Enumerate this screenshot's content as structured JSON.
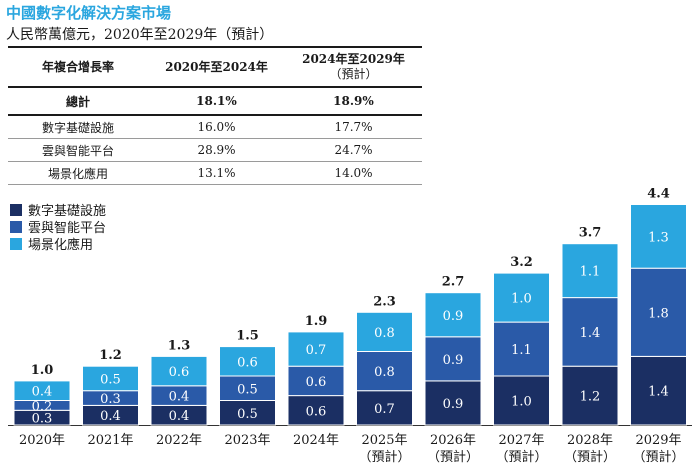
{
  "header": {
    "title": "中國數字化解決方案市場",
    "subtitle": "人民幣萬億元，2020年至2029年（預計）"
  },
  "cagr_table": {
    "headers": [
      "年複合增長率",
      "2020年至2024年",
      "2024年至2029年",
      "（預計）"
    ],
    "rows": [
      {
        "label": "總計",
        "v1": "18.1%",
        "v2": "18.9%"
      },
      {
        "label": "數字基礎設施",
        "v1": "16.0%",
        "v2": "17.7%"
      },
      {
        "label": "雲與智能平台",
        "v1": "28.9%",
        "v2": "24.7%"
      },
      {
        "label": "場景化應用",
        "v1": "13.1%",
        "v2": "14.0%"
      }
    ]
  },
  "chart_data": {
    "type": "bar",
    "stacked": true,
    "categories": [
      "2020年",
      "2021年",
      "2022年",
      "2023年",
      "2024年",
      "2025年",
      "2026年",
      "2027年",
      "2028年",
      "2029年"
    ],
    "category_notes": [
      "",
      "",
      "",
      "",
      "",
      "（預計）",
      "（預計）",
      "（預計）",
      "（預計）",
      "（預計）"
    ],
    "series": [
      {
        "name": "數字基礎設施",
        "color": "#1b2f63",
        "values": [
          0.3,
          0.4,
          0.4,
          0.5,
          0.6,
          0.7,
          0.9,
          1.0,
          1.2,
          1.4
        ],
        "labels": [
          "0.3",
          "0.4",
          "0.4",
          "0.5",
          "0.6",
          "0.7",
          "0.9",
          "1.0",
          "1.2",
          "1.4"
        ]
      },
      {
        "name": "雲與智能平台",
        "color": "#2a5aa8",
        "values": [
          0.2,
          0.3,
          0.4,
          0.5,
          0.6,
          0.8,
          0.9,
          1.1,
          1.4,
          1.8
        ],
        "labels": [
          "0.2",
          "0.3",
          "0.4",
          "0.5",
          "0.6",
          "0.8",
          "0.9",
          "1.1",
          "1.4",
          "1.8"
        ]
      },
      {
        "name": "場景化應用",
        "color": "#2aa6df",
        "values": [
          0.4,
          0.5,
          0.6,
          0.6,
          0.7,
          0.8,
          0.9,
          1.0,
          1.1,
          1.3
        ],
        "labels": [
          "0.4",
          "0.5",
          "0.6",
          "0.6",
          "0.7",
          "0.8",
          "0.9",
          "1.0",
          "1.1",
          "1.3"
        ]
      }
    ],
    "totals": [
      1.0,
      1.2,
      1.3,
      1.5,
      1.9,
      2.3,
      2.7,
      3.2,
      3.7,
      4.4
    ],
    "total_labels": [
      "1.0",
      "1.2",
      "1.3",
      "1.5",
      "1.9",
      "2.3",
      "2.7",
      "3.2",
      "3.7",
      "4.4"
    ],
    "ylim": [
      0,
      4.4
    ],
    "legend": "top-left",
    "grid": false
  }
}
